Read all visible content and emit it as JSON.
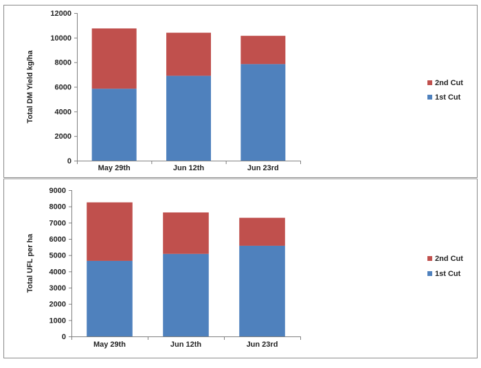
{
  "chart_data": [
    {
      "type": "bar",
      "stacked": true,
      "title": "",
      "xlabel": "",
      "ylabel": "Total DM Yield kg/ha",
      "categories": [
        "May 29th",
        "Jun 12th",
        "Jun 23rd"
      ],
      "ylim": [
        0,
        12000
      ],
      "yticks": [
        0,
        2000,
        4000,
        6000,
        8000,
        10000,
        12000
      ],
      "ytick_labels": [
        "0",
        "2000",
        "4000",
        "6000",
        "8000",
        "10000",
        "12000"
      ],
      "series": [
        {
          "name": "1st Cut",
          "color": "#4F81BD",
          "values": [
            5850,
            6900,
            7850
          ]
        },
        {
          "name": "2nd Cut",
          "color": "#C0504D",
          "values": [
            4900,
            3500,
            2300
          ]
        }
      ],
      "legend": {
        "position": "right",
        "entries": [
          "2nd Cut",
          "1st Cut"
        ]
      },
      "grid": false
    },
    {
      "type": "bar",
      "stacked": true,
      "title": "",
      "xlabel": "",
      "ylabel": "Total UFL per ha",
      "categories": [
        "May 29th",
        "Jun 12th",
        "Jun 23rd"
      ],
      "ylim": [
        0,
        9000
      ],
      "yticks": [
        0,
        1000,
        2000,
        3000,
        4000,
        5000,
        6000,
        7000,
        8000,
        9000
      ],
      "ytick_labels": [
        "0",
        "1000",
        "2000",
        "3000",
        "4000",
        "5000",
        "6000",
        "7000",
        "8000",
        "9000"
      ],
      "series": [
        {
          "name": "1st Cut",
          "color": "#4F81BD",
          "values": [
            4650,
            5080,
            5580
          ]
        },
        {
          "name": "2nd Cut",
          "color": "#C0504D",
          "values": [
            3600,
            2550,
            1720
          ]
        }
      ],
      "legend": {
        "position": "right",
        "entries": [
          "2nd Cut",
          "1st Cut"
        ]
      },
      "grid": false
    }
  ]
}
